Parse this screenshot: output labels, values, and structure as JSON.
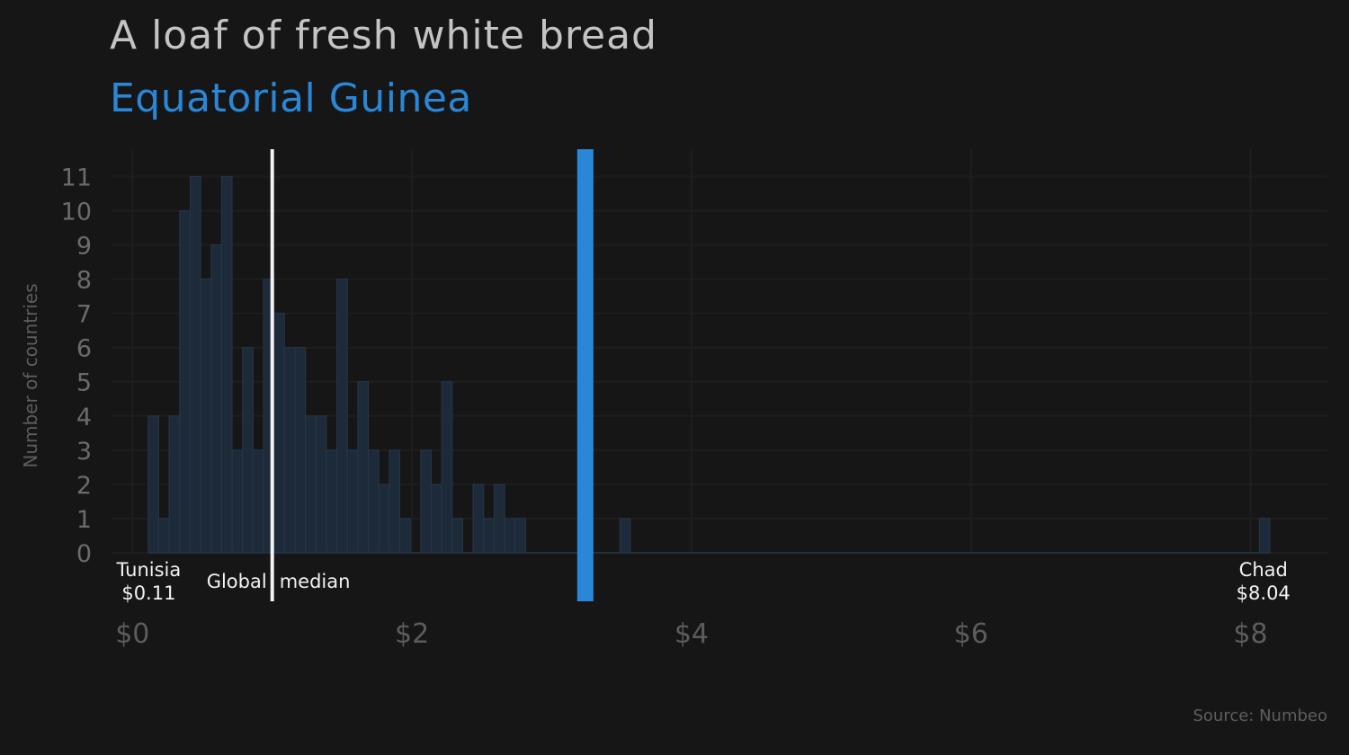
{
  "title": "A loaf of fresh white bread",
  "subtitle": "Equatorial Guinea",
  "source": "Source: Numbeo",
  "colors": {
    "background": "#161616",
    "bar_fill": "#1d2a39",
    "bar_stroke": "#263748",
    "highlight": "#2a87d8",
    "median_line": "#f2f2f2",
    "grid": "#1e1e1e"
  },
  "chart_data": {
    "type": "bar",
    "title": "A loaf of fresh white bread",
    "subtitle": "Equatorial Guinea",
    "xlabel": "",
    "ylabel": "Number of countries",
    "xlim": [
      -0.15,
      8.55
    ],
    "ylim": [
      0,
      11.8
    ],
    "bin_width": 0.075,
    "x_ticks": [
      0,
      2,
      4,
      6,
      8
    ],
    "x_tick_labels": [
      "$0",
      "$2",
      "$4",
      "$6",
      "$8"
    ],
    "y_ticks": [
      0,
      1,
      2,
      3,
      4,
      5,
      6,
      7,
      8,
      9,
      10,
      11
    ],
    "y_tick_labels": [
      "0",
      "1",
      "2",
      "3",
      "4",
      "5",
      "6",
      "7",
      "8",
      "9",
      "10",
      "11"
    ],
    "bins": [
      {
        "x": 0.15,
        "count": 4
      },
      {
        "x": 0.225,
        "count": 1
      },
      {
        "x": 0.3,
        "count": 4
      },
      {
        "x": 0.375,
        "count": 10
      },
      {
        "x": 0.45,
        "count": 11
      },
      {
        "x": 0.525,
        "count": 8
      },
      {
        "x": 0.6,
        "count": 9
      },
      {
        "x": 0.675,
        "count": 11
      },
      {
        "x": 0.75,
        "count": 3
      },
      {
        "x": 0.825,
        "count": 6
      },
      {
        "x": 0.9,
        "count": 3
      },
      {
        "x": 0.975,
        "count": 8
      },
      {
        "x": 1.05,
        "count": 7
      },
      {
        "x": 1.125,
        "count": 6
      },
      {
        "x": 1.2,
        "count": 6
      },
      {
        "x": 1.275,
        "count": 4
      },
      {
        "x": 1.35,
        "count": 4
      },
      {
        "x": 1.425,
        "count": 3
      },
      {
        "x": 1.5,
        "count": 8
      },
      {
        "x": 1.575,
        "count": 3
      },
      {
        "x": 1.65,
        "count": 5
      },
      {
        "x": 1.725,
        "count": 3
      },
      {
        "x": 1.8,
        "count": 2
      },
      {
        "x": 1.875,
        "count": 3
      },
      {
        "x": 1.95,
        "count": 1
      },
      {
        "x": 2.025,
        "count": 0
      },
      {
        "x": 2.1,
        "count": 3
      },
      {
        "x": 2.175,
        "count": 2
      },
      {
        "x": 2.25,
        "count": 5
      },
      {
        "x": 2.325,
        "count": 1
      },
      {
        "x": 2.4,
        "count": 0
      },
      {
        "x": 2.475,
        "count": 2
      },
      {
        "x": 2.55,
        "count": 1
      },
      {
        "x": 2.625,
        "count": 2
      },
      {
        "x": 2.7,
        "count": 1
      },
      {
        "x": 2.775,
        "count": 1
      },
      {
        "x": 3.225,
        "count": 2
      },
      {
        "x": 3.525,
        "count": 1
      },
      {
        "x": 8.1,
        "count": 1
      }
    ],
    "highlight": {
      "label": "Equatorial Guinea",
      "value": 3.24
    },
    "median": {
      "label": "Global median",
      "value": 1.0
    },
    "min_annotation": {
      "country": "Tunisia",
      "value": 0.11,
      "label": "$0.11"
    },
    "max_annotation": {
      "country": "Chad",
      "value": 8.04,
      "label": "$8.04"
    }
  }
}
